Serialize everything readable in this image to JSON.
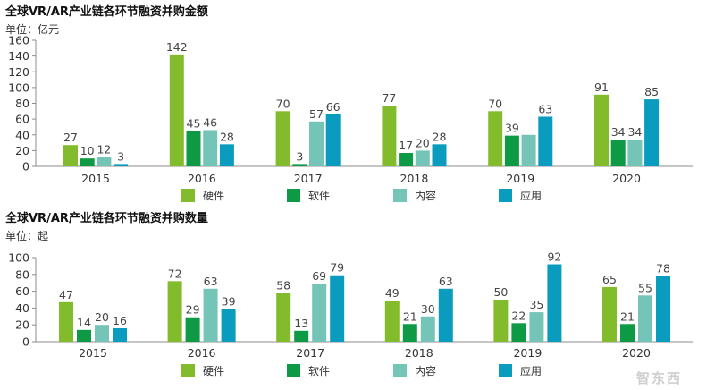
{
  "chart_data": [
    {
      "type": "bar",
      "title": "全球VR/AR产业链各环节融资并购金额",
      "unit_label": "单位：亿元",
      "categories": [
        "2015",
        "2016",
        "2017",
        "2018",
        "2019",
        "2020"
      ],
      "ylim": [
        0,
        160
      ],
      "yticks": [
        0,
        20,
        40,
        60,
        80,
        100,
        120,
        140,
        160
      ],
      "grid": false,
      "legend_position": "bottom",
      "series": [
        {
          "name": "硬件",
          "color": "#82bc2c",
          "values": [
            27,
            142,
            70,
            77,
            70,
            91
          ]
        },
        {
          "name": "软件",
          "color": "#0e9a44",
          "values": [
            10,
            45,
            3,
            17,
            39,
            34
          ]
        },
        {
          "name": "内容",
          "color": "#74c4b8",
          "values": [
            12,
            46,
            57,
            20,
            40,
            34
          ]
        },
        {
          "name": "应用",
          "color": "#0a9cbf",
          "values": [
            3,
            28,
            66,
            28,
            63,
            85
          ]
        }
      ],
      "data_labels": [
        [
          "27",
          "10",
          "12",
          "3"
        ],
        [
          "142",
          "45",
          "46",
          "28"
        ],
        [
          "70",
          "3",
          "57",
          "66"
        ],
        [
          "77",
          "17",
          "20",
          "28"
        ],
        [
          "70",
          "39",
          "",
          "63"
        ],
        [
          "91",
          "34",
          "34",
          "85"
        ]
      ]
    },
    {
      "type": "bar",
      "title": "全球VR/AR产业链各环节融资并购数量",
      "unit_label": "单位：起",
      "categories": [
        "2015",
        "2016",
        "2017",
        "2018",
        "2019",
        "2020"
      ],
      "ylim": [
        0,
        100
      ],
      "yticks": [
        0,
        20,
        40,
        60,
        80,
        100
      ],
      "grid": false,
      "legend_position": "bottom",
      "series": [
        {
          "name": "硬件",
          "color": "#82bc2c",
          "values": [
            47,
            72,
            58,
            49,
            50,
            65
          ]
        },
        {
          "name": "软件",
          "color": "#0e9a44",
          "values": [
            14,
            29,
            13,
            21,
            22,
            21
          ]
        },
        {
          "name": "内容",
          "color": "#74c4b8",
          "values": [
            20,
            63,
            69,
            30,
            35,
            55
          ]
        },
        {
          "name": "应用",
          "color": "#0a9cbf",
          "values": [
            16,
            39,
            79,
            63,
            92,
            78
          ]
        }
      ],
      "data_labels": [
        [
          "47",
          "14",
          "20",
          "16"
        ],
        [
          "72",
          "29",
          "63",
          "39"
        ],
        [
          "58",
          "13",
          "69",
          "79"
        ],
        [
          "49",
          "21",
          "30",
          "63"
        ],
        [
          "50",
          "22",
          "35",
          "92"
        ],
        [
          "65",
          "21",
          "55",
          "78"
        ]
      ]
    }
  ],
  "watermark": "智东西"
}
